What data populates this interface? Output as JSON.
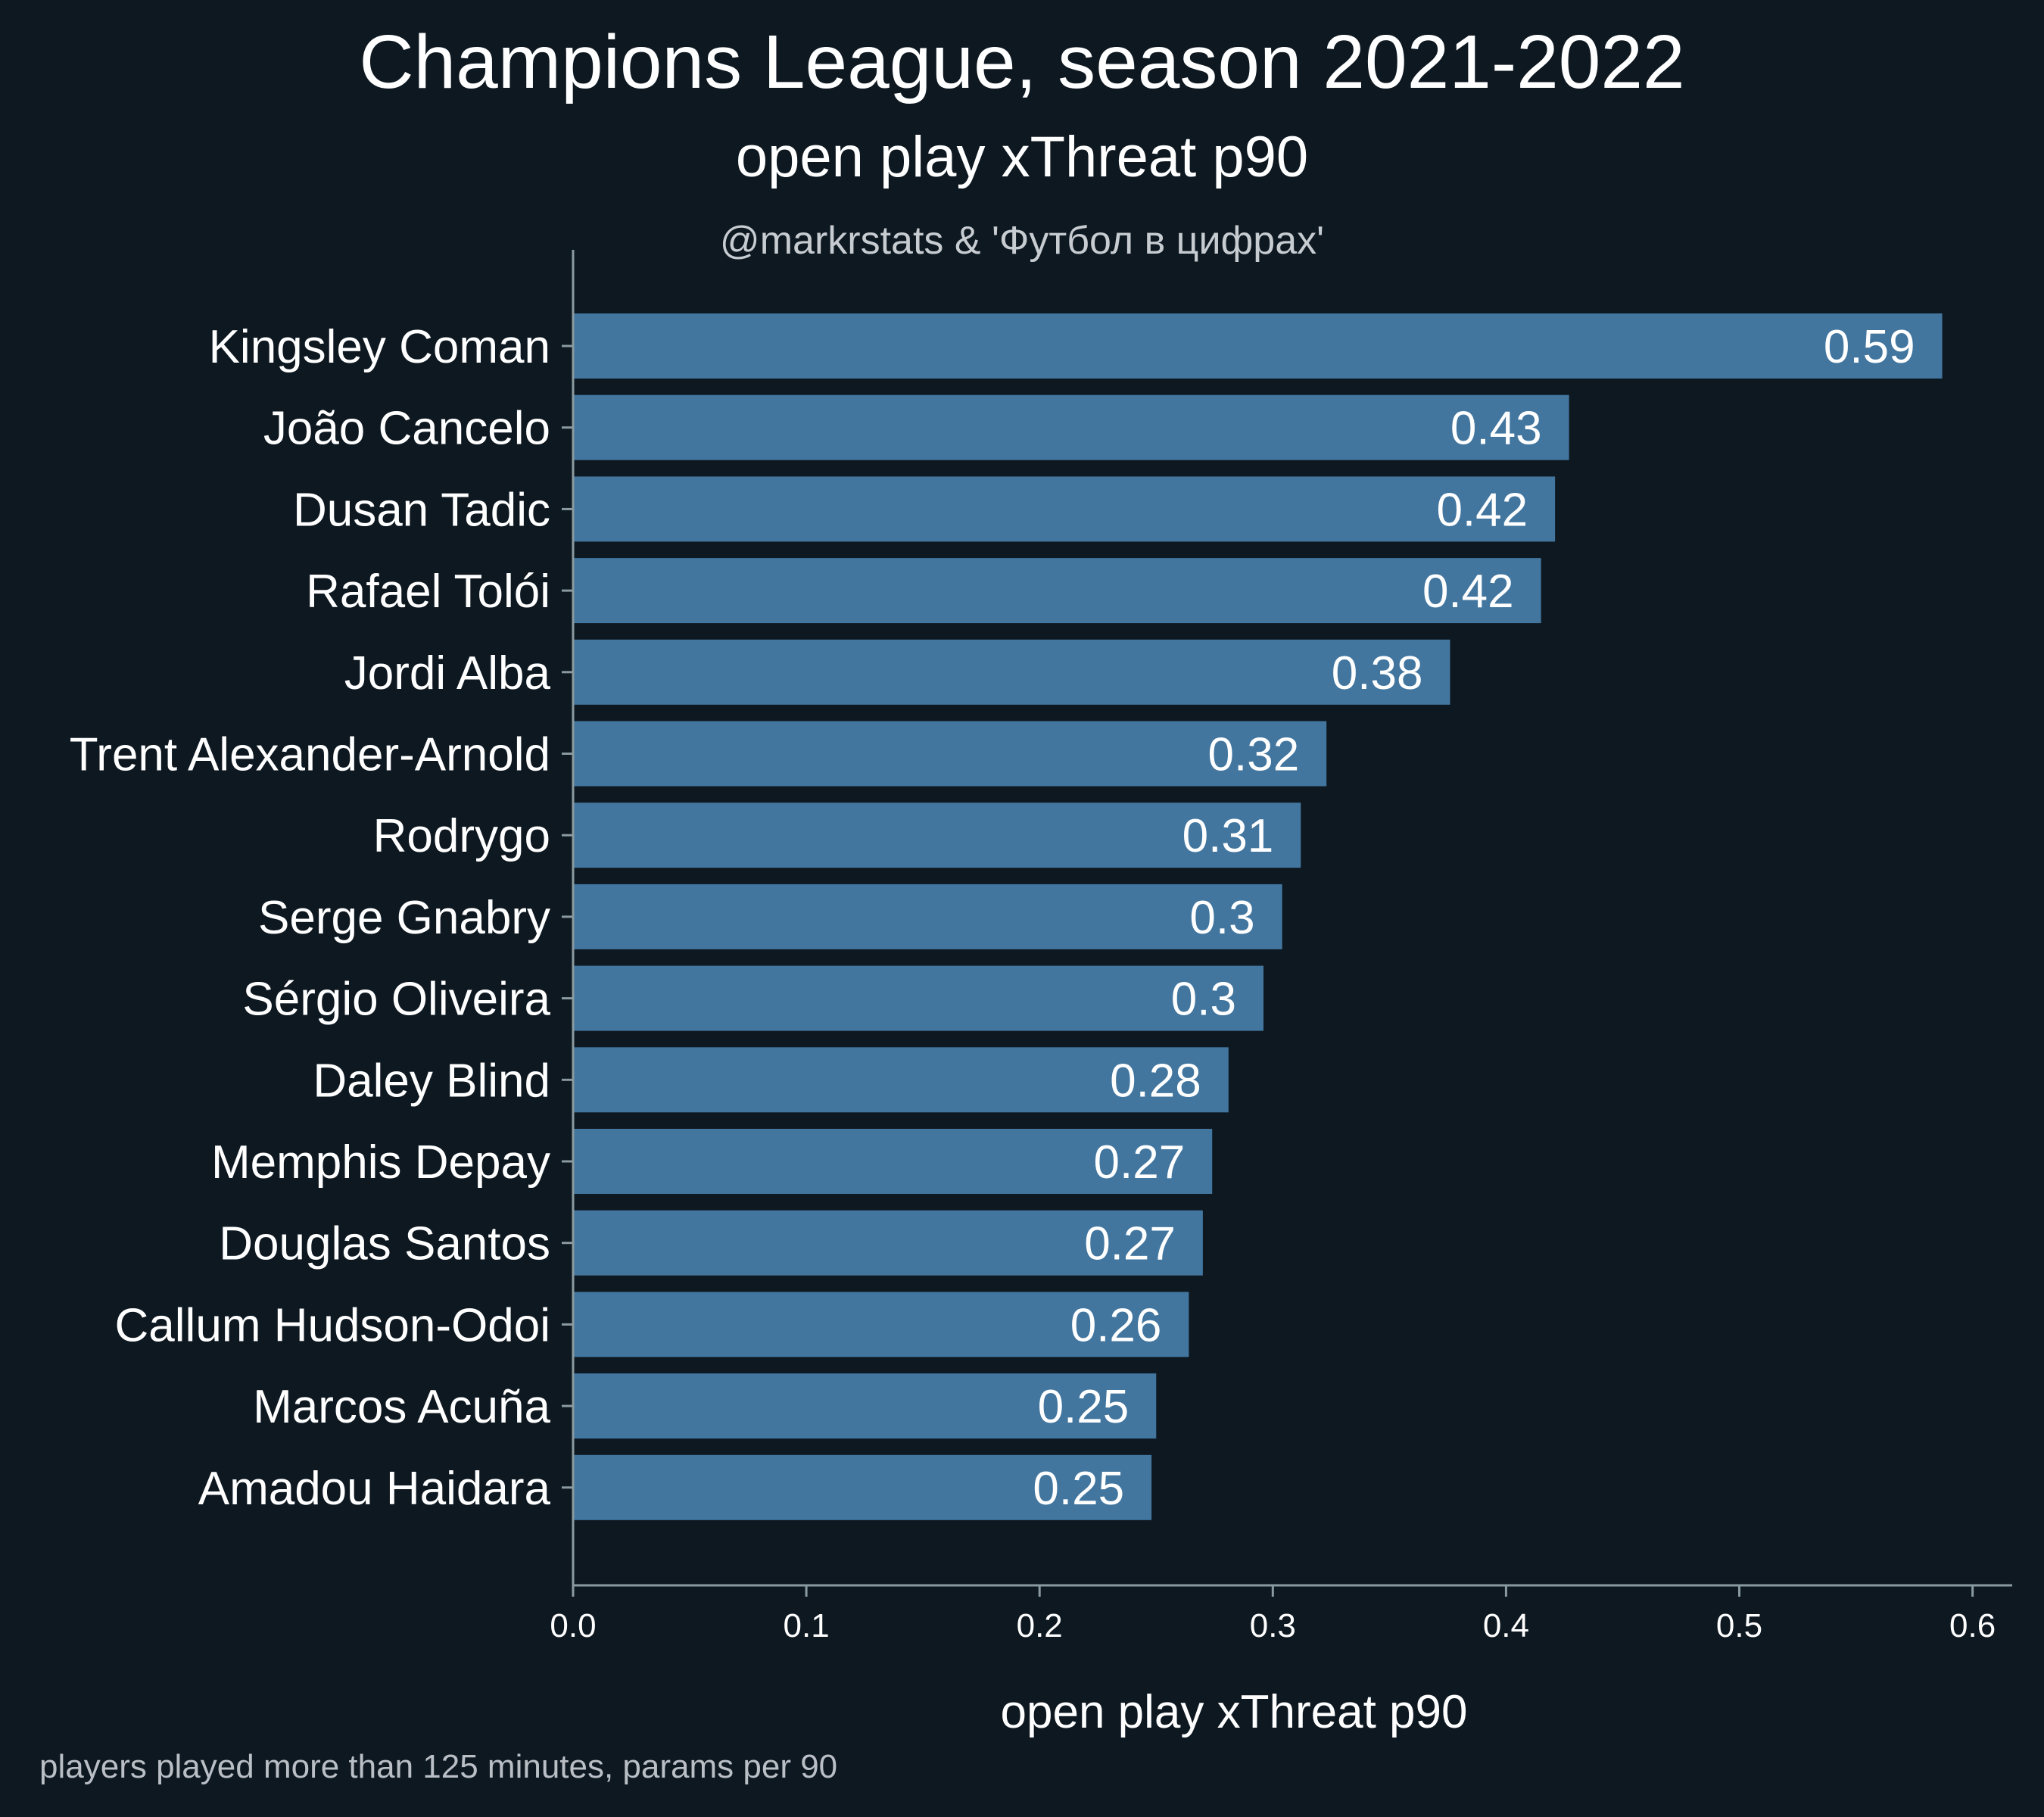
{
  "header": {
    "title": "Champions League, season 2021-2022",
    "subtitle": "open play xThreat p90",
    "credit": "@markrstats & 'Футбол в цифрах'"
  },
  "footnote": "players played more than 125 minutes, params per 90",
  "colors": {
    "background": "#0e1821",
    "bar": "#42769f",
    "axis": "#8a9ba0",
    "text": "#ffffff"
  },
  "chart_data": {
    "type": "bar",
    "orientation": "horizontal",
    "categories": [
      "Kingsley Coman",
      "João Cancelo",
      "Dusan Tadic",
      "Rafael Tolói",
      "Jordi Alba",
      "Trent Alexander-Arnold",
      "Rodrygo",
      "Serge Gnabry",
      "Sérgio Oliveira",
      "Daley Blind",
      "Memphis Depay",
      "Douglas Santos",
      "Callum Hudson-Odoi",
      "Marcos Acuña",
      "Amadou Haidara"
    ],
    "values": [
      0.587,
      0.427,
      0.421,
      0.415,
      0.376,
      0.323,
      0.312,
      0.304,
      0.296,
      0.281,
      0.274,
      0.27,
      0.264,
      0.25,
      0.248
    ],
    "data_labels": [
      "0.59",
      "0.43",
      "0.42",
      "0.42",
      "0.38",
      "0.32",
      "0.31",
      "0.3",
      "0.3",
      "0.28",
      "0.27",
      "0.27",
      "0.26",
      "0.25",
      "0.25"
    ],
    "xlabel": "open play xThreat p90",
    "ylabel": "",
    "xlim": [
      0,
      0.617
    ],
    "xticks": [
      0.0,
      0.1,
      0.2,
      0.3,
      0.4,
      0.5,
      0.6
    ],
    "xtick_labels": [
      "0.0",
      "0.1",
      "0.2",
      "0.3",
      "0.4",
      "0.5",
      "0.6"
    ],
    "grid": false,
    "legend": "none"
  }
}
